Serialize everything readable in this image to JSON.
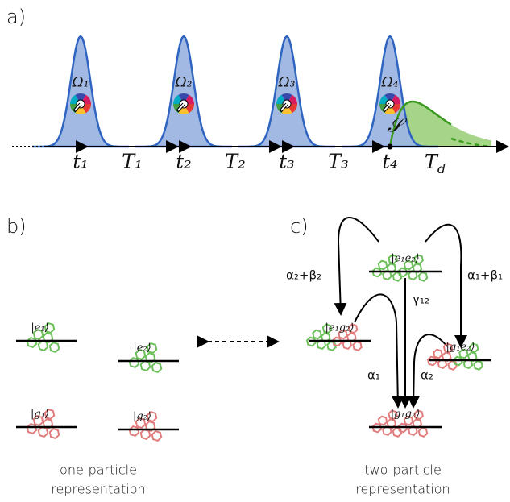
{
  "panels": {
    "a": "a)",
    "b": "b)",
    "c": "c)"
  },
  "timeline": {
    "rabi": [
      "Ω₁",
      "Ω₂",
      "Ω₃",
      "Ω₄"
    ],
    "signal": "𝒮",
    "times": [
      "t₁",
      "t₂",
      "t₃",
      "t₄"
    ],
    "intervals": [
      "T₁",
      "T₂",
      "T₃"
    ],
    "detection": {
      "main": "T",
      "sub": "d"
    }
  },
  "one_particle": {
    "states": {
      "e1": "|e₁⟩",
      "e2": "|e₂⟩",
      "g1": "|g₁⟩",
      "g2": "|g₂⟩"
    },
    "caption": [
      "one-particle",
      "representation"
    ]
  },
  "two_particle": {
    "states": {
      "e1e2": "|e₁e₂⟩",
      "e1g2": "|e₁g₂⟩",
      "g1e2": "|g₁e₂⟩",
      "g1g2": "|g₁g₂⟩"
    },
    "rates": {
      "left": "α₂+β₂",
      "right": "α₁+β₁",
      "center": "γ₁₂",
      "a1": "α₁",
      "a2": "α₂"
    },
    "caption": [
      "two-particle",
      "representation"
    ]
  }
}
